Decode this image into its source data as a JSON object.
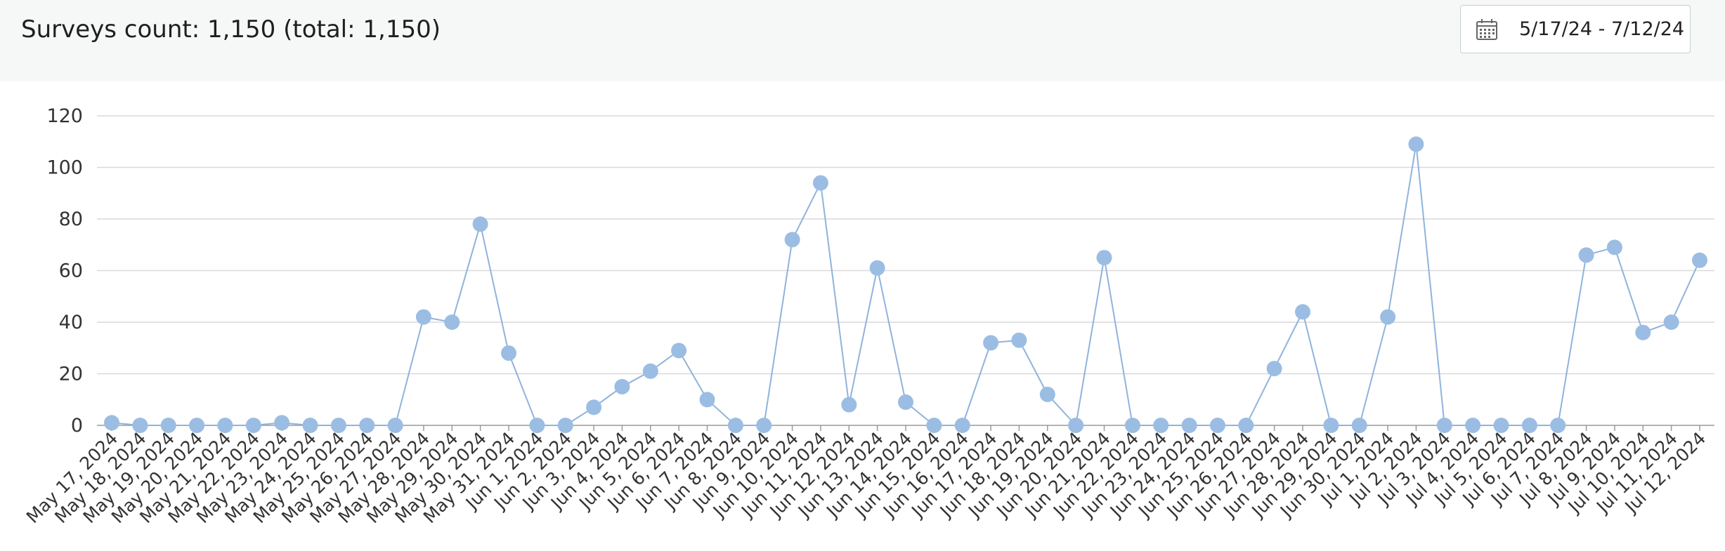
{
  "header": {
    "title": "Surveys count: 1,150 (total: 1,150)",
    "date_range": "5/17/24 - 7/12/24",
    "calendar_icon": "calendar-icon"
  },
  "colors": {
    "series": "#9bbde3",
    "line": "#8fb3dc",
    "grid": "#d9d9d9",
    "header_bg": "#f6f7f7"
  },
  "chart_data": {
    "type": "line",
    "grid": true,
    "ylim": [
      0,
      120
    ],
    "yticks": [
      "0",
      "20",
      "40",
      "60",
      "80",
      "100",
      "120"
    ],
    "x": [
      "May 17, 2024",
      "May 18, 2024",
      "May 19, 2024",
      "May 20, 2024",
      "May 21, 2024",
      "May 22, 2024",
      "May 23, 2024",
      "May 24, 2024",
      "May 25, 2024",
      "May 26, 2024",
      "May 27, 2024",
      "May 28, 2024",
      "May 29, 2024",
      "May 30, 2024",
      "May 31, 2024",
      "Jun 1, 2024",
      "Jun 2, 2024",
      "Jun 3, 2024",
      "Jun 4, 2024",
      "Jun 5, 2024",
      "Jun 6, 2024",
      "Jun 7, 2024",
      "Jun 8, 2024",
      "Jun 9, 2024",
      "Jun 10, 2024",
      "Jun 11, 2024",
      "Jun 12, 2024",
      "Jun 13, 2024",
      "Jun 14, 2024",
      "Jun 15, 2024",
      "Jun 16, 2024",
      "Jun 17, 2024",
      "Jun 18, 2024",
      "Jun 19, 2024",
      "Jun 20, 2024",
      "Jun 21, 2024",
      "Jun 22, 2024",
      "Jun 23, 2024",
      "Jun 24, 2024",
      "Jun 25, 2024",
      "Jun 26, 2024",
      "Jun 27, 2024",
      "Jun 28, 2024",
      "Jun 29, 2024",
      "Jun 30, 2024",
      "Jul 1, 2024",
      "Jul 2, 2024",
      "Jul 3, 2024",
      "Jul 4, 2024",
      "Jul 5, 2024",
      "Jul 6, 2024",
      "Jul 7, 2024",
      "Jul 8, 2024",
      "Jul 9, 2024",
      "Jul 10, 2024",
      "Jul 11, 2024",
      "Jul 12, 2024"
    ],
    "series": [
      {
        "values": [
          1,
          0,
          0,
          0,
          0,
          0,
          1,
          0,
          0,
          0,
          0,
          42,
          40,
          78,
          28,
          0,
          0,
          7,
          15,
          21,
          29,
          10,
          0,
          0,
          72,
          94,
          8,
          61,
          9,
          0,
          0,
          32,
          33,
          12,
          0,
          65,
          0,
          0,
          0,
          0,
          0,
          22,
          44,
          0,
          0,
          42,
          109,
          0,
          0,
          0,
          0,
          0,
          66,
          69,
          36,
          40,
          64
        ]
      }
    ]
  }
}
